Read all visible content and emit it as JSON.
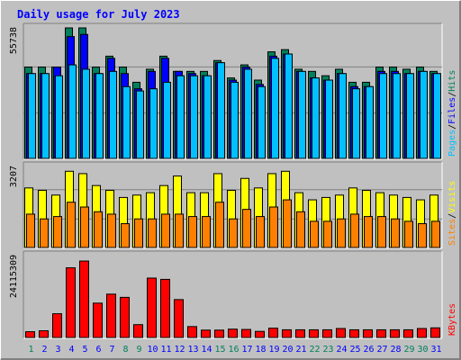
{
  "title": "Daily usage for July 2023",
  "colors": {
    "background": "#c0c0c0",
    "plot": "#c0c0c0",
    "hits": "#00805c",
    "files": "#0000ff",
    "pages": "#00c0ff",
    "visits": "#ffff00",
    "sites": "#ff8000",
    "kbytes": "#ff0000",
    "title": "#0000ff",
    "weekday_label": "#0000ff",
    "weekend_label": "#00805c"
  },
  "chart_data": [
    {
      "type": "bar",
      "name": "hits-files-pages",
      "y_label_value": "55738",
      "legend": [
        "Hits",
        "/",
        "Files",
        "/",
        "Pages"
      ],
      "ylim": [
        0,
        60000
      ],
      "series": [
        {
          "name": "Hits",
          "values": [
            42000,
            42000,
            42000,
            60000,
            60000,
            42000,
            47000,
            42000,
            35000,
            41000,
            47000,
            40000,
            40000,
            40000,
            45000,
            37000,
            43000,
            36000,
            49000,
            50000,
            41000,
            40000,
            38000,
            41000,
            35000,
            35000,
            42000,
            42000,
            41000,
            42000,
            40000
          ]
        },
        {
          "name": "Files",
          "values": [
            39000,
            39000,
            42000,
            56000,
            57000,
            39000,
            46000,
            39000,
            32000,
            40000,
            46000,
            40000,
            39000,
            38000,
            44000,
            36000,
            42000,
            34000,
            47000,
            48000,
            40000,
            37000,
            36000,
            39000,
            33000,
            33000,
            40000,
            40000,
            39000,
            40000,
            39000
          ]
        },
        {
          "name": "Pages",
          "values": [
            39000,
            39000,
            38000,
            43000,
            41000,
            39000,
            40000,
            33000,
            31000,
            32000,
            35000,
            38000,
            38000,
            38000,
            44000,
            35000,
            41000,
            33000,
            46000,
            48000,
            40000,
            37000,
            36000,
            39000,
            32000,
            33000,
            39000,
            39000,
            39000,
            40000,
            39000
          ]
        }
      ]
    },
    {
      "type": "bar",
      "name": "visits-sites",
      "y_label_value": "3207",
      "legend": [
        "Visits",
        "/",
        "Sites"
      ],
      "ylim": [
        0,
        3400
      ],
      "series": [
        {
          "name": "Visits",
          "values": [
            2500,
            2400,
            2200,
            3200,
            3100,
            2600,
            2400,
            2100,
            2200,
            2300,
            2600,
            3000,
            2300,
            2300,
            3100,
            2400,
            2900,
            2500,
            3100,
            3200,
            2300,
            2000,
            2100,
            2200,
            2500,
            2400,
            2300,
            2200,
            2100,
            2000,
            2200
          ]
        },
        {
          "name": "Sites",
          "values": [
            1400,
            1200,
            1300,
            1900,
            1700,
            1500,
            1400,
            1000,
            1200,
            1200,
            1400,
            1400,
            1300,
            1300,
            1900,
            1200,
            1600,
            1300,
            1700,
            2000,
            1500,
            1100,
            1100,
            1200,
            1400,
            1300,
            1300,
            1200,
            1100,
            1000,
            1100
          ]
        }
      ]
    },
    {
      "type": "bar",
      "name": "kbytes",
      "y_label_value": "24115309",
      "legend": [
        "KBytes"
      ],
      "ylim": [
        0,
        25500000
      ],
      "series": [
        {
          "name": "KBytes",
          "values": [
            1800000,
            2100000,
            7400000,
            21700000,
            23800000,
            10700000,
            13500000,
            12500000,
            4000000,
            18500000,
            18100000,
            11800000,
            3400000,
            2300000,
            2300000,
            2600000,
            2500000,
            1900000,
            2900000,
            2400000,
            2400000,
            2400000,
            2400000,
            2800000,
            2400000,
            2400000,
            2400000,
            2400000,
            2400000,
            2800000,
            3000000
          ]
        }
      ]
    }
  ],
  "days": [
    "1",
    "2",
    "3",
    "4",
    "5",
    "6",
    "7",
    "8",
    "9",
    "10",
    "11",
    "12",
    "13",
    "14",
    "15",
    "16",
    "17",
    "18",
    "19",
    "20",
    "21",
    "22",
    "23",
    "24",
    "25",
    "26",
    "27",
    "28",
    "29",
    "30",
    "31"
  ],
  "weekend_days": [
    1,
    8,
    9,
    15,
    16,
    22,
    23,
    29,
    30
  ]
}
